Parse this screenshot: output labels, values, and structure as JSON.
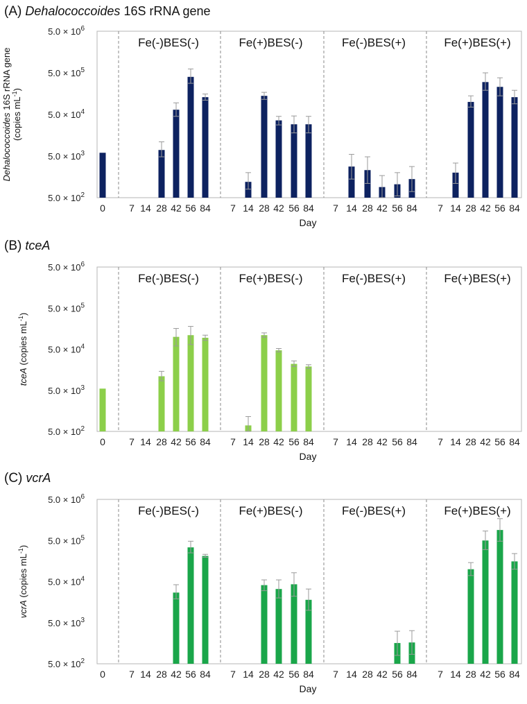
{
  "chart_data": [
    {
      "type": "bar",
      "panel_label": "(A)",
      "title_italic": "Dehalococcoides",
      "title_rest": " 16S rRNA gene",
      "ylabel_italic": "Dehalococcoides",
      "ylabel_rest": " 16S rRNA gene",
      "ylabel_line2": "(copies mL",
      "ylabel_sup": "-1",
      "ylabel_close": ")",
      "xlabel": "Day",
      "yscale": "log",
      "ylim": [
        500,
        5000000
      ],
      "y_ticks": [
        {
          "base": "5.0 × 10",
          "exp": "2",
          "value": 500
        },
        {
          "base": "5.0 × 10",
          "exp": "3",
          "value": 5000
        },
        {
          "base": "5.0 × 10",
          "exp": "4",
          "value": 50000
        },
        {
          "base": "5.0 × 10",
          "exp": "5",
          "value": 500000
        },
        {
          "base": "5.0 × 10",
          "exp": "6",
          "value": 5000000
        }
      ],
      "color": "#0d2260",
      "initial": {
        "day": "0",
        "value": 6000,
        "err": null
      },
      "groups": [
        {
          "name": "Fe(-)BES(-)",
          "days": [
            "7",
            "14",
            "28",
            "42",
            "56",
            "84"
          ],
          "values": [
            null,
            null,
            7000,
            65000,
            400000,
            130000
          ],
          "err_hi": [
            null,
            null,
            11000,
            95000,
            620000,
            155000
          ],
          "err_lo": [
            null,
            null,
            4800,
            45000,
            280000,
            110000
          ]
        },
        {
          "name": "Fe(+)BES(-)",
          "days": [
            "7",
            "14",
            "28",
            "42",
            "56",
            "84"
          ],
          "values": [
            null,
            1200,
            140000,
            36000,
            29000,
            29000
          ],
          "err_hi": [
            null,
            2000,
            170000,
            45000,
            46000,
            45000
          ],
          "err_lo": [
            null,
            800,
            115000,
            28000,
            18000,
            18000
          ]
        },
        {
          "name": "Fe(-)BES(+)",
          "days": [
            "7",
            "14",
            "28",
            "42",
            "56",
            "84"
          ],
          "values": [
            null,
            2800,
            2300,
            900,
            1050,
            1400
          ],
          "err_hi": [
            null,
            5500,
            4800,
            1700,
            2000,
            2800
          ],
          "err_lo": [
            null,
            1400,
            1100,
            500,
            550,
            700
          ]
        },
        {
          "name": "Fe(+)BES(+)",
          "days": [
            "7",
            "14",
            "28",
            "42",
            "56",
            "84"
          ],
          "values": [
            null,
            2000,
            100000,
            300000,
            230000,
            130000
          ],
          "err_hi": [
            null,
            3400,
            140000,
            500000,
            380000,
            190000
          ],
          "err_lo": [
            null,
            1100,
            75000,
            190000,
            140000,
            90000
          ]
        }
      ]
    },
    {
      "type": "bar",
      "panel_label": "(B)",
      "title_italic": "tceA",
      "title_rest": "",
      "ylabel_italic": "tceA",
      "ylabel_rest": " (copies mL",
      "ylabel_sup": "-1",
      "ylabel_close": ")",
      "xlabel": "Day",
      "yscale": "log",
      "ylim": [
        500,
        5000000
      ],
      "y_ticks": [
        {
          "base": "5.0 × 10",
          "exp": "2",
          "value": 500
        },
        {
          "base": "5.0 × 10",
          "exp": "3",
          "value": 5000
        },
        {
          "base": "5.0 × 10",
          "exp": "4",
          "value": 50000
        },
        {
          "base": "5.0 × 10",
          "exp": "5",
          "value": 500000
        },
        {
          "base": "5.0 × 10",
          "exp": "6",
          "value": 5000000
        }
      ],
      "color": "#8ccf4a",
      "initial": {
        "day": "0",
        "value": 5500,
        "err": null
      },
      "groups": [
        {
          "name": "Fe(-)BES(-)",
          "days": [
            "7",
            "14",
            "28",
            "42",
            "56",
            "84"
          ],
          "values": [
            null,
            null,
            11000,
            100000,
            110000,
            95000
          ],
          "err_hi": [
            null,
            null,
            14500,
            160000,
            180000,
            110000
          ],
          "err_lo": [
            null,
            null,
            8500,
            60000,
            65000,
            82000
          ]
        },
        {
          "name": "Fe(+)BES(-)",
          "days": [
            "7",
            "14",
            "28",
            "42",
            "56",
            "84"
          ],
          "values": [
            null,
            700,
            110000,
            47000,
            22000,
            19000
          ],
          "err_hi": [
            null,
            1150,
            125000,
            52000,
            26000,
            21000
          ],
          "err_lo": [
            null,
            500,
            98000,
            43000,
            19000,
            17000
          ]
        },
        {
          "name": "Fe(-)BES(+)",
          "days": [
            "7",
            "14",
            "28",
            "42",
            "56",
            "84"
          ],
          "values": [
            null,
            null,
            null,
            null,
            null,
            null
          ],
          "err_hi": [
            null,
            null,
            null,
            null,
            null,
            null
          ],
          "err_lo": [
            null,
            null,
            null,
            null,
            null,
            null
          ]
        },
        {
          "name": "Fe(+)BES(+)",
          "days": [
            "7",
            "14",
            "28",
            "42",
            "56",
            "84"
          ],
          "values": [
            null,
            null,
            null,
            null,
            null,
            null
          ],
          "err_hi": [
            null,
            null,
            null,
            null,
            null,
            null
          ],
          "err_lo": [
            null,
            null,
            null,
            null,
            null,
            null
          ]
        }
      ]
    },
    {
      "type": "bar",
      "panel_label": "(C)",
      "title_italic": "vcrA",
      "title_rest": "",
      "ylabel_italic": "vcrA",
      "ylabel_rest": " (copies mL",
      "ylabel_sup": "-1",
      "ylabel_close": ")",
      "xlabel": "Day",
      "yscale": "log",
      "ylim": [
        500,
        5000000
      ],
      "y_ticks": [
        {
          "base": "5.0 × 10",
          "exp": "2",
          "value": 500
        },
        {
          "base": "5.0 × 10",
          "exp": "3",
          "value": 5000
        },
        {
          "base": "5.0 × 10",
          "exp": "4",
          "value": 50000
        },
        {
          "base": "5.0 × 10",
          "exp": "5",
          "value": 500000
        },
        {
          "base": "5.0 × 10",
          "exp": "6",
          "value": 5000000
        }
      ],
      "color": "#1aa64a",
      "initial": {
        "day": "0",
        "value": null,
        "err": null
      },
      "groups": [
        {
          "name": "Fe(-)BES(-)",
          "days": [
            "7",
            "14",
            "28",
            "42",
            "56",
            "84"
          ],
          "values": [
            null,
            null,
            null,
            27000,
            340000,
            210000
          ],
          "err_hi": [
            null,
            null,
            null,
            42000,
            480000,
            230000
          ],
          "err_lo": [
            null,
            null,
            null,
            19000,
            250000,
            195000
          ]
        },
        {
          "name": "Fe(+)BES(-)",
          "days": [
            "7",
            "14",
            "28",
            "42",
            "56",
            "84"
          ],
          "values": [
            null,
            null,
            41000,
            33000,
            43000,
            18000
          ],
          "err_hi": [
            null,
            null,
            55000,
            55000,
            82000,
            33000
          ],
          "err_lo": [
            null,
            null,
            30000,
            20000,
            22000,
            10000
          ]
        },
        {
          "name": "Fe(-)BES(+)",
          "days": [
            "7",
            "14",
            "28",
            "42",
            "56",
            "84"
          ],
          "values": [
            null,
            null,
            null,
            null,
            1600,
            1650
          ],
          "err_hi": [
            null,
            null,
            null,
            null,
            3100,
            3200
          ],
          "err_lo": [
            null,
            null,
            null,
            null,
            800,
            850
          ]
        },
        {
          "name": "Fe(+)BES(+)",
          "days": [
            "7",
            "14",
            "28",
            "42",
            "56",
            "84"
          ],
          "values": [
            null,
            null,
            100000,
            500000,
            900000,
            155000
          ],
          "err_hi": [
            null,
            null,
            145000,
            850000,
            1700000,
            240000
          ],
          "err_lo": [
            null,
            null,
            70000,
            300000,
            480000,
            100000
          ]
        }
      ]
    }
  ]
}
